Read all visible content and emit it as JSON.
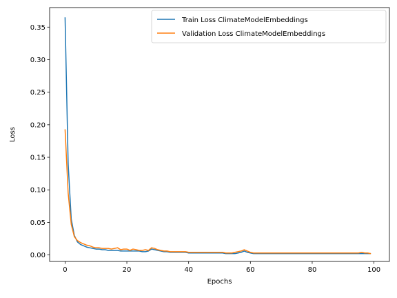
{
  "chart_data": {
    "type": "line",
    "title": "",
    "xlabel": "Epochs",
    "ylabel": "Loss",
    "xlim": [
      -5,
      105
    ],
    "ylim": [
      -0.01,
      0.38
    ],
    "xticks": [
      0,
      20,
      40,
      60,
      80,
      100
    ],
    "yticks": [
      0.0,
      0.05,
      0.1,
      0.15,
      0.2,
      0.25,
      0.3,
      0.35
    ],
    "xtick_labels": [
      "0",
      "20",
      "40",
      "60",
      "80",
      "100"
    ],
    "ytick_labels": [
      "0.00",
      "0.05",
      "0.10",
      "0.15",
      "0.20",
      "0.25",
      "0.30",
      "0.35"
    ],
    "grid": false,
    "legend_position": "top-right",
    "series": [
      {
        "name": "Train Loss ClimateModelEmbeddings",
        "color": "#1f77b4",
        "x": [
          0,
          1,
          2,
          3,
          4,
          5,
          6,
          7,
          8,
          9,
          10,
          11,
          12,
          13,
          14,
          15,
          16,
          17,
          18,
          19,
          20,
          21,
          22,
          23,
          24,
          25,
          26,
          27,
          28,
          29,
          30,
          31,
          32,
          33,
          34,
          35,
          36,
          37,
          38,
          39,
          40,
          41,
          42,
          43,
          44,
          45,
          46,
          47,
          48,
          49,
          50,
          51,
          52,
          53,
          54,
          55,
          56,
          57,
          58,
          59,
          60,
          61,
          62,
          63,
          64,
          65,
          66,
          67,
          68,
          69,
          70,
          71,
          72,
          73,
          74,
          75,
          76,
          77,
          78,
          79,
          80,
          81,
          82,
          83,
          84,
          85,
          86,
          87,
          88,
          89,
          90,
          91,
          92,
          93,
          94,
          95,
          96,
          97,
          98,
          99
        ],
        "values": [
          0.365,
          0.14,
          0.055,
          0.03,
          0.02,
          0.016,
          0.014,
          0.012,
          0.011,
          0.01,
          0.009,
          0.009,
          0.008,
          0.008,
          0.007,
          0.007,
          0.007,
          0.007,
          0.006,
          0.006,
          0.006,
          0.006,
          0.006,
          0.006,
          0.006,
          0.005,
          0.005,
          0.006,
          0.009,
          0.008,
          0.007,
          0.006,
          0.005,
          0.005,
          0.004,
          0.004,
          0.004,
          0.004,
          0.004,
          0.004,
          0.003,
          0.003,
          0.003,
          0.003,
          0.003,
          0.003,
          0.003,
          0.003,
          0.003,
          0.003,
          0.003,
          0.003,
          0.002,
          0.002,
          0.002,
          0.002,
          0.003,
          0.004,
          0.006,
          0.004,
          0.003,
          0.002,
          0.002,
          0.002,
          0.002,
          0.002,
          0.002,
          0.002,
          0.002,
          0.002,
          0.002,
          0.002,
          0.002,
          0.002,
          0.002,
          0.002,
          0.002,
          0.002,
          0.002,
          0.002,
          0.002,
          0.002,
          0.002,
          0.002,
          0.002,
          0.002,
          0.002,
          0.002,
          0.002,
          0.002,
          0.002,
          0.002,
          0.002,
          0.002,
          0.002,
          0.002,
          0.002,
          0.002,
          0.002,
          0.002
        ]
      },
      {
        "name": "Validation Loss ClimateModelEmbeddings",
        "color": "#ff7f0e",
        "x": [
          0,
          1,
          2,
          3,
          4,
          5,
          6,
          7,
          8,
          9,
          10,
          11,
          12,
          13,
          14,
          15,
          16,
          17,
          18,
          19,
          20,
          21,
          22,
          23,
          24,
          25,
          26,
          27,
          28,
          29,
          30,
          31,
          32,
          33,
          34,
          35,
          36,
          37,
          38,
          39,
          40,
          41,
          42,
          43,
          44,
          45,
          46,
          47,
          48,
          49,
          50,
          51,
          52,
          53,
          54,
          55,
          56,
          57,
          58,
          59,
          60,
          61,
          62,
          63,
          64,
          65,
          66,
          67,
          68,
          69,
          70,
          71,
          72,
          73,
          74,
          75,
          76,
          77,
          78,
          79,
          80,
          81,
          82,
          83,
          84,
          85,
          86,
          87,
          88,
          89,
          90,
          91,
          92,
          93,
          94,
          95,
          96,
          97,
          98,
          99
        ],
        "values": [
          0.193,
          0.095,
          0.047,
          0.028,
          0.022,
          0.019,
          0.017,
          0.015,
          0.014,
          0.012,
          0.011,
          0.011,
          0.01,
          0.01,
          0.01,
          0.009,
          0.01,
          0.011,
          0.008,
          0.009,
          0.009,
          0.007,
          0.009,
          0.008,
          0.007,
          0.007,
          0.008,
          0.007,
          0.011,
          0.01,
          0.008,
          0.007,
          0.006,
          0.006,
          0.005,
          0.005,
          0.005,
          0.005,
          0.005,
          0.005,
          0.004,
          0.004,
          0.004,
          0.004,
          0.004,
          0.004,
          0.004,
          0.004,
          0.004,
          0.004,
          0.004,
          0.004,
          0.003,
          0.003,
          0.003,
          0.004,
          0.005,
          0.006,
          0.008,
          0.006,
          0.004,
          0.003,
          0.003,
          0.003,
          0.003,
          0.003,
          0.003,
          0.003,
          0.003,
          0.003,
          0.003,
          0.003,
          0.003,
          0.003,
          0.003,
          0.003,
          0.003,
          0.003,
          0.003,
          0.003,
          0.003,
          0.003,
          0.003,
          0.003,
          0.003,
          0.003,
          0.003,
          0.003,
          0.003,
          0.003,
          0.003,
          0.003,
          0.003,
          0.003,
          0.003,
          0.003,
          0.004,
          0.003,
          0.003,
          0.002
        ]
      }
    ]
  }
}
